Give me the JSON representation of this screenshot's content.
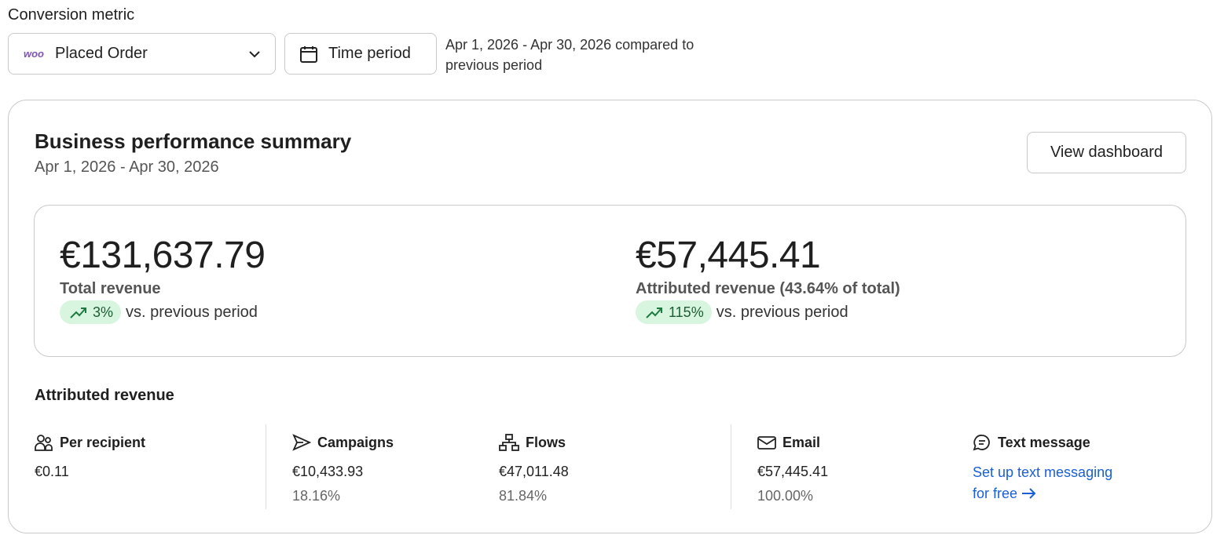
{
  "controls": {
    "label": "Conversion metric",
    "metric": {
      "logo": "woo",
      "value": "Placed Order"
    },
    "time_button": "Time period",
    "period_note": "Apr 1, 2026 - Apr 30, 2026 compared to previous period"
  },
  "summary": {
    "title": "Business performance summary",
    "date_range": "Apr 1, 2026 - Apr 30, 2026",
    "button": "View dashboard",
    "kpis": [
      {
        "value": "€131,637.79",
        "label": "Total revenue",
        "change": "3%",
        "comparison": "vs. previous period"
      },
      {
        "value": "€57,445.41",
        "label": "Attributed revenue (43.64% of total)",
        "change": "115%",
        "comparison": "vs. previous period"
      }
    ],
    "attributed": {
      "title": "Attributed revenue",
      "columns": [
        {
          "label": "Per recipient",
          "value": "€0.11"
        },
        {
          "label": "Campaigns",
          "value": "€10,433.93",
          "share": "18.16%"
        },
        {
          "label": "Flows",
          "value": "€47,011.48",
          "share": "81.84%"
        },
        {
          "label": "Email",
          "value": "€57,445.41",
          "share": "100.00%"
        },
        {
          "label": "Text message",
          "link": "Set up text messaging for free"
        }
      ]
    }
  }
}
